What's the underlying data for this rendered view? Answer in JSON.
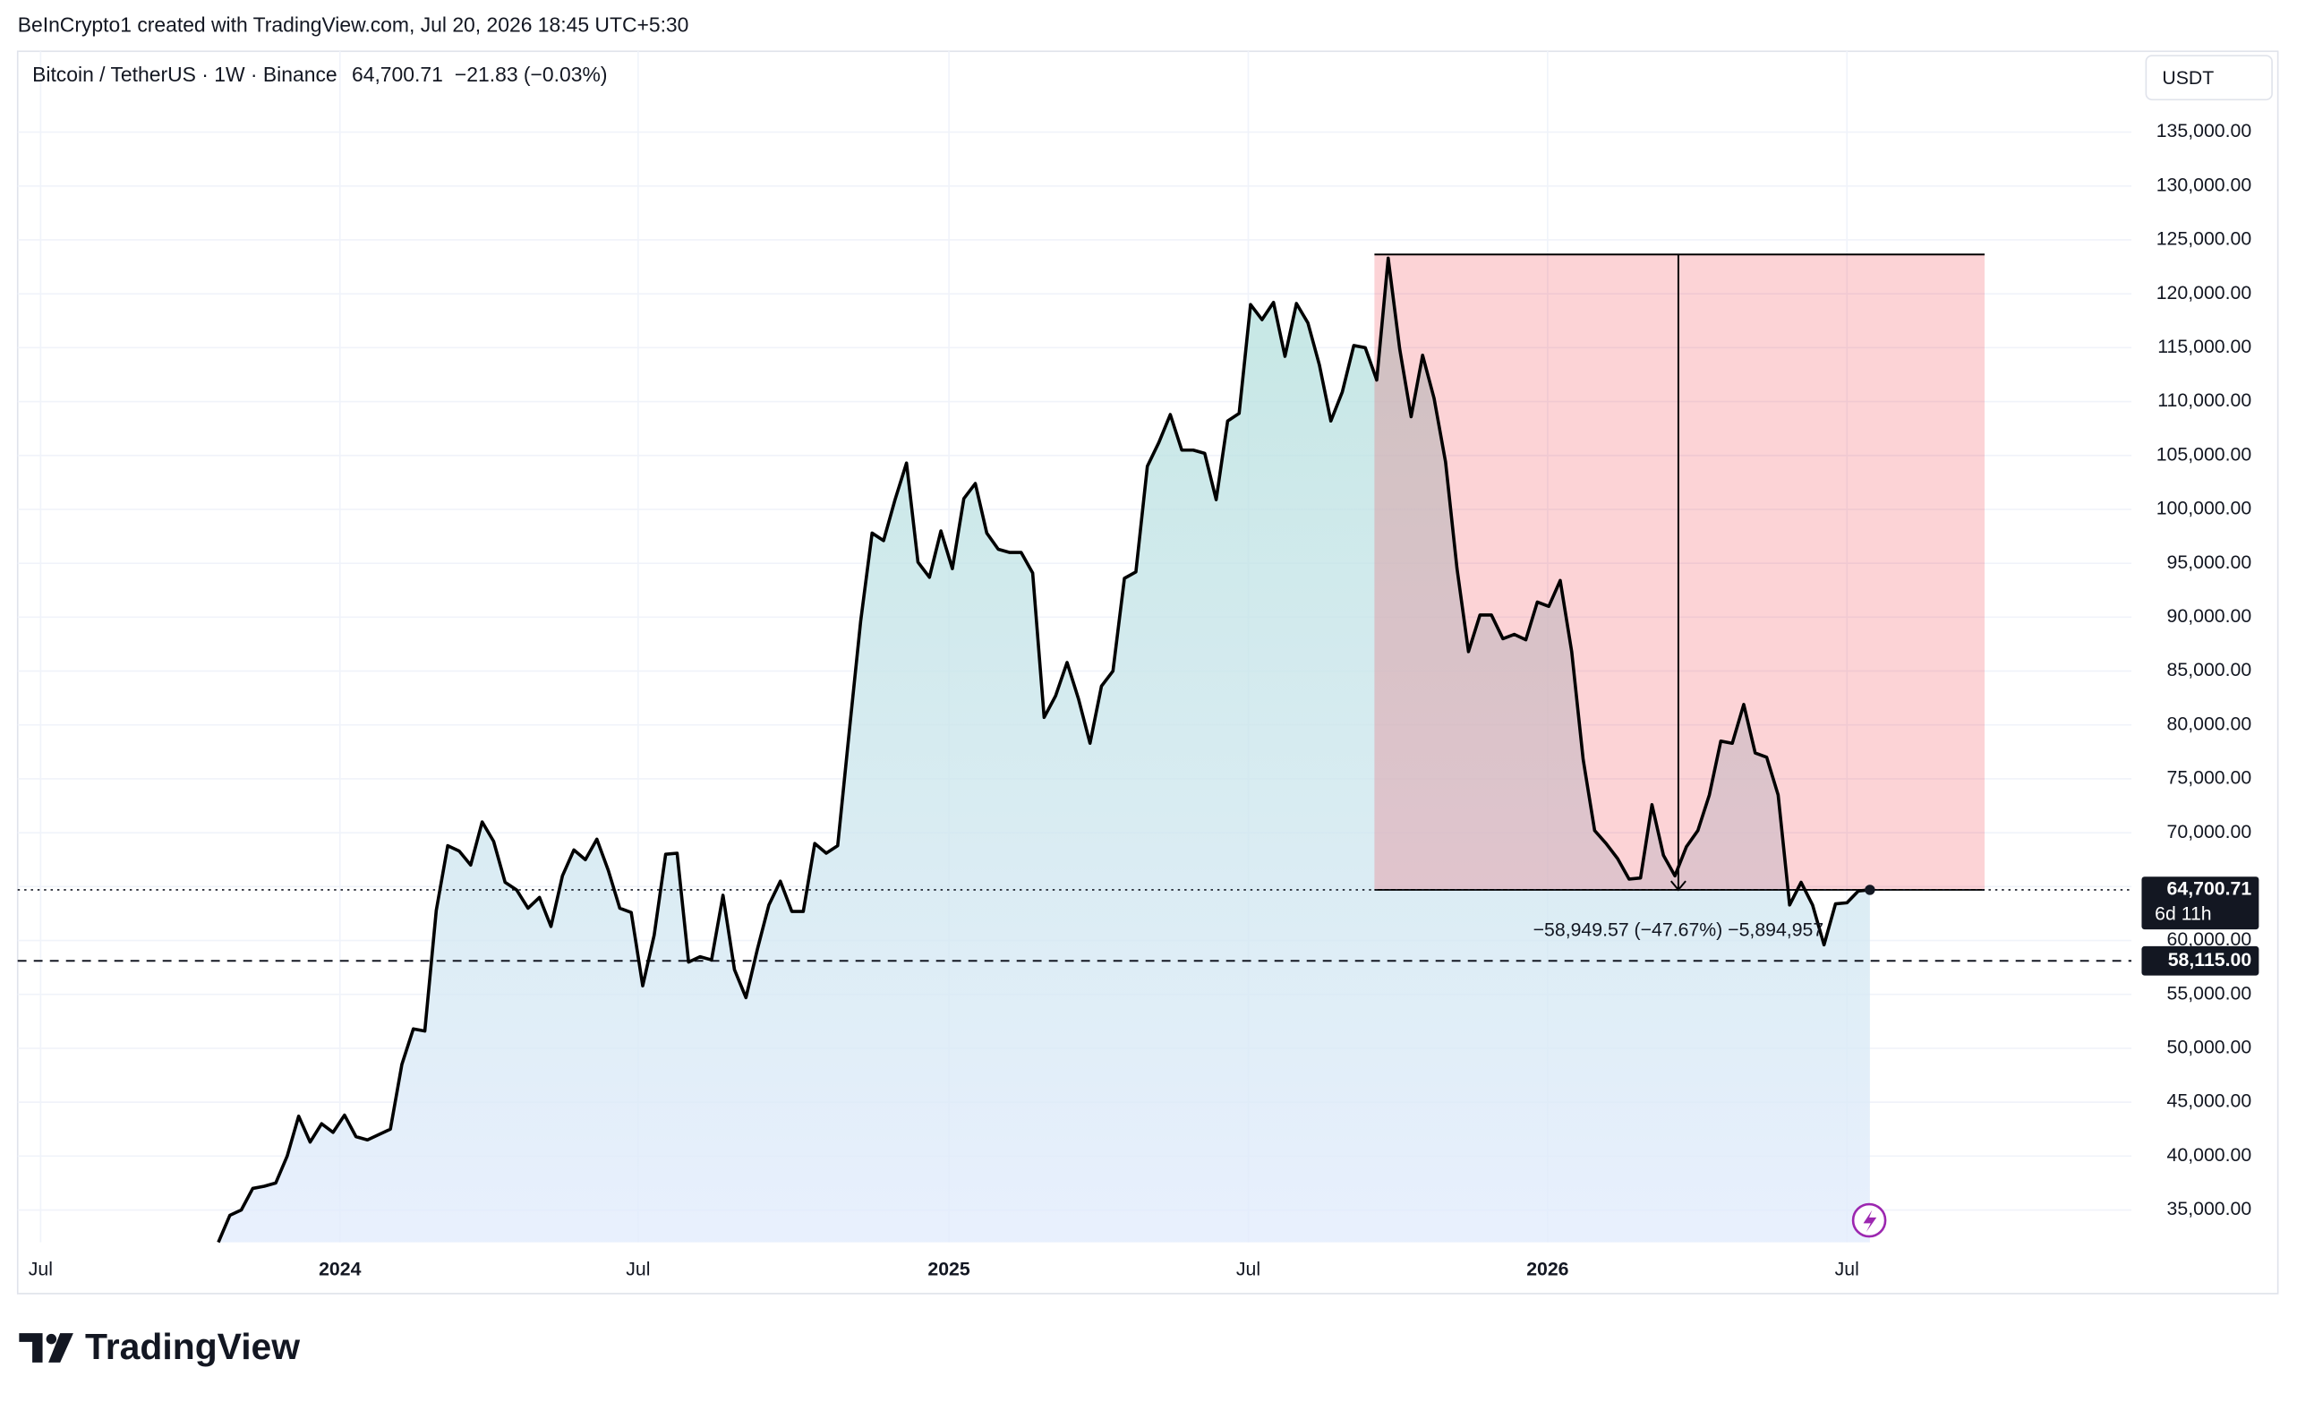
{
  "chart_data": {
    "type": "area",
    "credit": "BeInCrypto1 created with TradingView.com, Jul 20, 2026 18:45 UTC+5:30",
    "symbol": "Bitcoin / TetherUS · 1W · Binance",
    "last": {
      "value": 64700.71,
      "label": "64,700.71"
    },
    "change": "−21.83 (−0.03%)",
    "currency": "USDT",
    "countdown": "6d 11h",
    "level": {
      "value": 58115,
      "label": "58,115.00"
    },
    "measure": {
      "top": 123650.28,
      "bottom": 64700.71,
      "x_start": 100.8,
      "x_end": 154,
      "x_mid": 127.3,
      "label": "−58,949.57 (−47.67%) −5,894,957"
    },
    "brand": "TradingView",
    "series": [
      {
        "name": "Bitcoin / TetherUS",
        "color": "#000000",
        "values": [
          32000,
          34500,
          35000,
          37000,
          37200,
          37500,
          40000,
          43700,
          41300,
          43000,
          42200,
          43800,
          41800,
          41500,
          42000,
          42500,
          48500,
          51800,
          51600,
          62800,
          68800,
          68300,
          67000,
          71000,
          69200,
          65400,
          64700,
          63000,
          64000,
          61300,
          66000,
          68400,
          67500,
          69400,
          66500,
          63000,
          62600,
          55800,
          60500,
          68000,
          68100,
          58000,
          58500,
          58200,
          64200,
          57300,
          54700,
          59200,
          63300,
          65500,
          62700,
          62700,
          69000,
          68100,
          68800,
          79300,
          89600,
          97800,
          97100,
          100900,
          104300,
          95100,
          93700,
          98000,
          94500,
          101000,
          102400,
          97800,
          96300,
          96000,
          96000,
          94100,
          80700,
          82700,
          85800,
          82400,
          78300,
          83600,
          85000,
          93600,
          94200,
          104000,
          106200,
          108800,
          105500,
          105500,
          105200,
          100900,
          108200,
          108900,
          119000,
          117600,
          119200,
          114200,
          119100,
          117300,
          113400,
          108200,
          110900,
          115200,
          115000,
          112000,
          123300,
          114900,
          108600,
          114300,
          110300,
          104400,
          94500,
          86800,
          90200,
          90200,
          88000,
          88400,
          87900,
          91400,
          91000,
          93400,
          86800,
          76800,
          70200,
          69000,
          67600,
          65700,
          65800,
          72600,
          67900,
          66000,
          68700,
          70200,
          73500,
          78500,
          78300,
          81900,
          77400,
          77000,
          73500,
          63300,
          65400,
          63300,
          59600,
          63400,
          63500,
          64600,
          64700.71
        ]
      }
    ],
    "xlim": [
      -17.5,
      166.8
    ],
    "xticks": [
      {
        "value": -15.5,
        "label": "Jul"
      },
      {
        "value": 10.6,
        "label": "2024"
      },
      {
        "value": 36.6,
        "label": "Jul"
      },
      {
        "value": 63.7,
        "label": "2025"
      },
      {
        "value": 89.8,
        "label": "Jul"
      },
      {
        "value": 115.9,
        "label": "2026"
      },
      {
        "value": 142,
        "label": "Jul"
      }
    ],
    "ylim": [
      32000,
      142500
    ],
    "yticks": [
      {
        "value": 35000,
        "label": "35,000.00"
      },
      {
        "value": 40000,
        "label": "40,000.00"
      },
      {
        "value": 45000,
        "label": "45,000.00"
      },
      {
        "value": 50000,
        "label": "50,000.00"
      },
      {
        "value": 55000,
        "label": "55,000.00"
      },
      {
        "value": 60000,
        "label": "60,000.00"
      },
      {
        "value": 65000,
        "label": "65,000.00"
      },
      {
        "value": 70000,
        "label": "70,000.00"
      },
      {
        "value": 75000,
        "label": "75,000.00"
      },
      {
        "value": 80000,
        "label": "80,000.00"
      },
      {
        "value": 85000,
        "label": "85,000.00"
      },
      {
        "value": 90000,
        "label": "90,000.00"
      },
      {
        "value": 95000,
        "label": "95,000.00"
      },
      {
        "value": 100000,
        "label": "100,000.00"
      },
      {
        "value": 105000,
        "label": "105,000.00"
      },
      {
        "value": 110000,
        "label": "110,000.00"
      },
      {
        "value": 115000,
        "label": "115,000.00"
      },
      {
        "value": 120000,
        "label": "120,000.00"
      },
      {
        "value": 125000,
        "label": "125,000.00"
      },
      {
        "value": 130000,
        "label": "130,000.00"
      },
      {
        "value": 135000,
        "label": "135,000.00"
      }
    ],
    "grid": true
  }
}
